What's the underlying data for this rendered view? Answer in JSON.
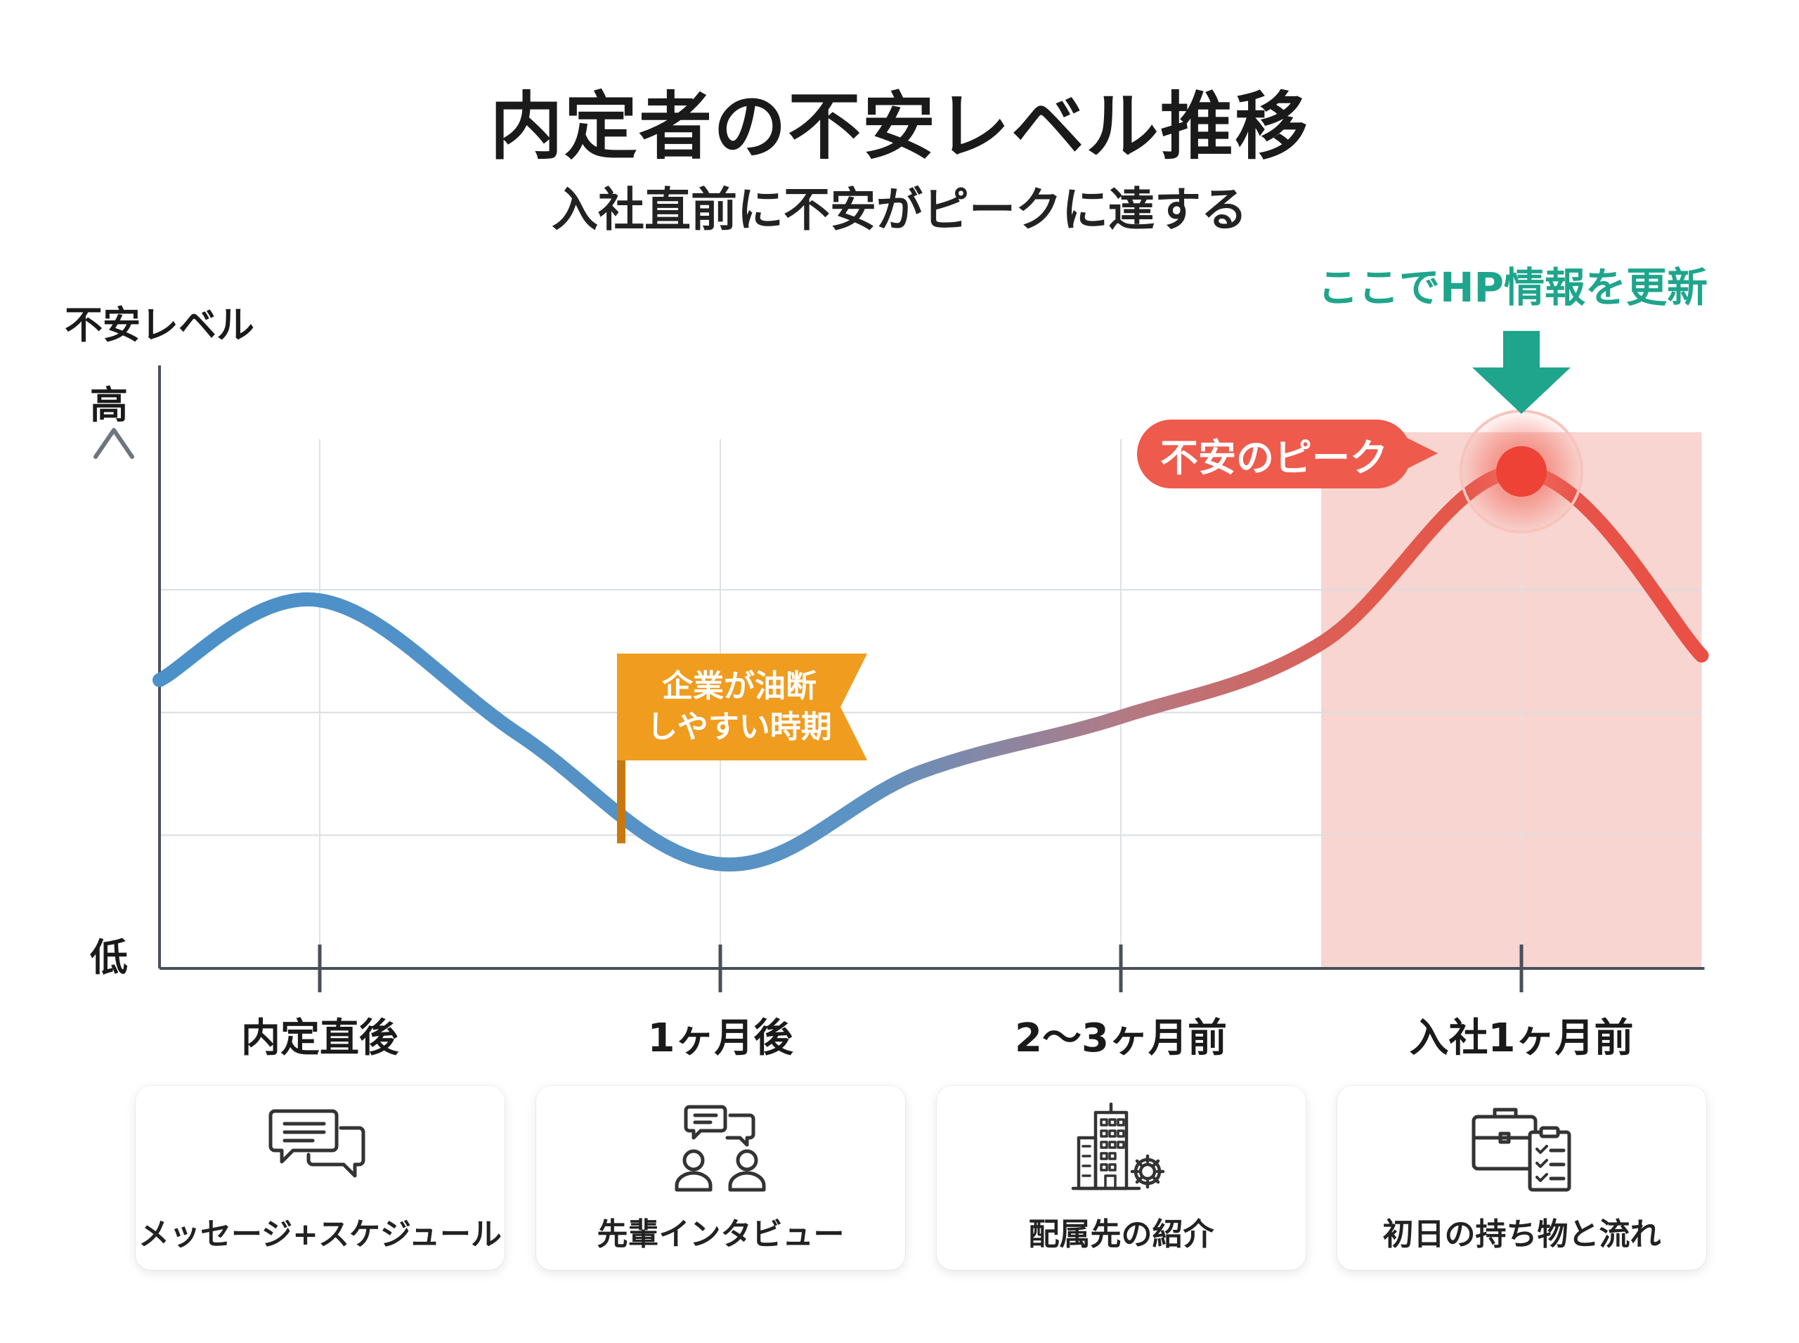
{
  "title": "内定者の不安レベル推移",
  "subtitle": "入社直前に不安がピークに達する",
  "callout_text": "ここでHP情報を更新",
  "peak_label": "不安のピーク",
  "flag_label": [
    "企業が油断",
    "しやすい時期"
  ],
  "chart_data": {
    "type": "line",
    "ylabel": "不安レベル",
    "y_high_label": "高",
    "y_low_label": "低",
    "categories": [
      "内定直後",
      "1ヶ月後",
      "2〜3ヶ月前",
      "入社1ヶ月前"
    ],
    "ylim": [
      0,
      100
    ],
    "grid": true,
    "series": [
      {
        "x": [
          -0.4,
          0.0,
          0.5,
          1.0,
          1.5,
          2.0,
          2.5,
          3.0,
          3.45
        ],
        "values": [
          47,
          60,
          38,
          17,
          32,
          41,
          53,
          81,
          51
        ]
      }
    ],
    "highlight_range": [
      2.5,
      3.45
    ],
    "peak": {
      "x": 3.0,
      "value": 81
    },
    "colors": {
      "low": "#4a90c9",
      "high": "#ea4f45",
      "callout": "#1ea58c",
      "flag": "#ef9c1f",
      "highlight": "#f8d5d0"
    }
  },
  "cards": [
    {
      "label": "メッセージ+スケジュール",
      "icon": "chat-bubbles-icon"
    },
    {
      "label": "先輩インタビュー",
      "icon": "people-talking-icon"
    },
    {
      "label": "配属先の紹介",
      "icon": "office-building-gear-icon"
    },
    {
      "label": "初日の持ち物と流れ",
      "icon": "briefcase-checklist-icon"
    }
  ]
}
